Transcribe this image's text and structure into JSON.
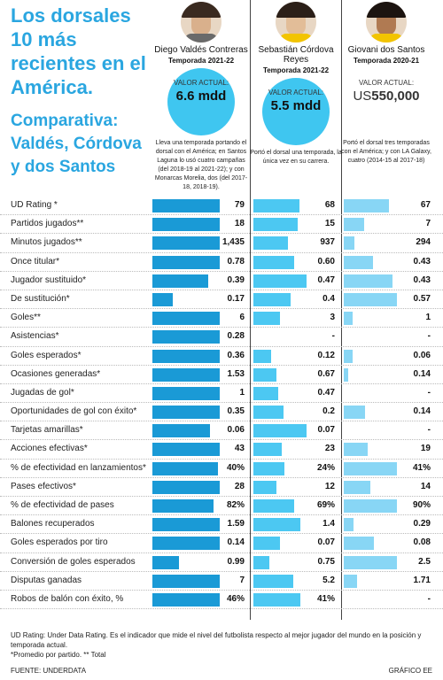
{
  "header": {
    "title": "Los dorsales 10 más recientes en el América.",
    "subtitle": "Comparativa: Valdés, Córdova y dos Santos"
  },
  "players": [
    {
      "name": "Diego Valdés Contreras",
      "season": "Temporada 2021-22",
      "value_label": "VALOR ACTUAL:",
      "value_amount": "6.6 mdd",
      "description": "Lleva una temporada portando el dorsal con el América; en Santos Laguna lo usó cuatro campañas (del 2018-19 al 2021-22); y con Monarcas Morelia, dos (del 2017-18, 2018-19).",
      "hair": "#3a2a20",
      "skin": "#d9b08c",
      "shirt": "#6a6a6a"
    },
    {
      "name": "Sebastián Córdova Reyes",
      "season": "Temporada 2021-22",
      "value_label": "VALOR ACTUAL:",
      "value_amount": "5.5 mdd",
      "description": "Portó el dorsal una temporada, la única vez en su carrera.",
      "hair": "#2b1f18",
      "skin": "#e2bd98",
      "shirt": "#f2c400"
    },
    {
      "name": "Giovani dos Santos",
      "season": "Temporada 2020-21",
      "value_label": "VALOR ACTUAL:",
      "value_prefix": "US",
      "value_number": "550,000",
      "description": "Portó el dorsal tres temporadas con el América; y con LA Galaxy, cuatro (2014-15 al 2017-18)",
      "hair": "#1c1410",
      "skin": "#b07a52",
      "shirt": "#f2c400"
    }
  ],
  "colors": {
    "valdes": "#1a9ad6",
    "cordova": "#4cc8f2",
    "dossantos": "#88d6f5",
    "accent": "#2aa6e0"
  },
  "chart_data": {
    "type": "bar",
    "series": [
      {
        "name": "Diego Valdés Contreras",
        "color": "#1a9ad6"
      },
      {
        "name": "Sebastián Córdova Reyes",
        "color": "#4cc8f2"
      },
      {
        "name": "Giovani dos Santos",
        "color": "#88d6f5"
      }
    ],
    "rows": [
      {
        "label": "UD Rating *",
        "v": [
          79,
          68,
          67
        ],
        "t": [
          "79",
          "68",
          "67"
        ]
      },
      {
        "label": "Partidos jugados**",
        "v": [
          18,
          15,
          7
        ],
        "t": [
          "18",
          "15",
          "7"
        ]
      },
      {
        "label": "Minutos jugados**",
        "v": [
          1435,
          937,
          294
        ],
        "t": [
          "1,435",
          "937",
          "294"
        ]
      },
      {
        "label": "Once titular*",
        "v": [
          0.78,
          0.6,
          0.43
        ],
        "t": [
          "0.78",
          "0.60",
          "0.43"
        ]
      },
      {
        "label": "Jugador sustituido*",
        "v": [
          0.39,
          0.47,
          0.43
        ],
        "t": [
          "0.39",
          "0.47",
          "0.43"
        ]
      },
      {
        "label": "De sustitución*",
        "v": [
          0.17,
          0.4,
          0.57
        ],
        "t": [
          "0.17",
          "0.4",
          "0.57"
        ]
      },
      {
        "label": "Goles**",
        "v": [
          6,
          3,
          1
        ],
        "t": [
          "6",
          "3",
          "1"
        ]
      },
      {
        "label": "Asistencias*",
        "v": [
          0.28,
          null,
          null
        ],
        "t": [
          "0.28",
          "-",
          "-"
        ]
      },
      {
        "label": "Goles esperados*",
        "v": [
          0.36,
          0.12,
          0.06
        ],
        "t": [
          "0.36",
          "0.12",
          "0.06"
        ]
      },
      {
        "label": "Ocasiones generadas*",
        "v": [
          1.53,
          0.67,
          0.14
        ],
        "t": [
          "1.53",
          "0.67",
          "0.14"
        ]
      },
      {
        "label": "Jugadas de gol*",
        "v": [
          1,
          0.47,
          null
        ],
        "t": [
          "1",
          "0.47",
          "-"
        ]
      },
      {
        "label": "Oportunidades de gol con éxito*",
        "v": [
          0.35,
          0.2,
          0.14
        ],
        "t": [
          "0.35",
          "0.2",
          "0.14"
        ]
      },
      {
        "label": "Tarjetas amarillas*",
        "v": [
          0.06,
          0.07,
          null
        ],
        "t": [
          "0.06",
          "0.07",
          "-"
        ]
      },
      {
        "label": "Acciones efectivas*",
        "v": [
          43,
          23,
          19
        ],
        "t": [
          "43",
          "23",
          "19"
        ]
      },
      {
        "label": "% de efectividad en lanzamientos*",
        "v": [
          40,
          24,
          41
        ],
        "t": [
          "40%",
          "24%",
          "41%"
        ]
      },
      {
        "label": "Pases efectivos*",
        "v": [
          28,
          12,
          14
        ],
        "t": [
          "28",
          "12",
          "14"
        ]
      },
      {
        "label": "% de efectividad de pases",
        "v": [
          82,
          69,
          90
        ],
        "t": [
          "82%",
          "69%",
          "90%"
        ]
      },
      {
        "label": "Balones recuperados",
        "v": [
          1.59,
          1.4,
          0.29
        ],
        "t": [
          "1.59",
          "1.4",
          "0.29"
        ]
      },
      {
        "label": "Goles esperados por tiro",
        "v": [
          0.14,
          0.07,
          0.08
        ],
        "t": [
          "0.14",
          "0.07",
          "0.08"
        ]
      },
      {
        "label": "Conversión de goles esperados",
        "v": [
          0.99,
          0.75,
          2.5
        ],
        "t": [
          "0.99",
          "0.75",
          "2.5"
        ]
      },
      {
        "label": "Disputas ganadas",
        "v": [
          7,
          5.2,
          1.71
        ],
        "t": [
          "7",
          "5.2",
          "1.71"
        ]
      },
      {
        "label": "Robos de balón con éxito, %",
        "v": [
          46,
          41,
          null
        ],
        "t": [
          "46%",
          "41%",
          "-"
        ]
      }
    ]
  },
  "footer": {
    "note": "UD Rating: Under Data Rating. Es el indicador que mide el nivel del futbolista respecto al mejor jugador del mundo en la posición y temporada actual.",
    "legend": "*Promedio por partido. ** Total",
    "source": "FUENTE: UNDERDATA",
    "credit": "GRÁFICO EE"
  }
}
